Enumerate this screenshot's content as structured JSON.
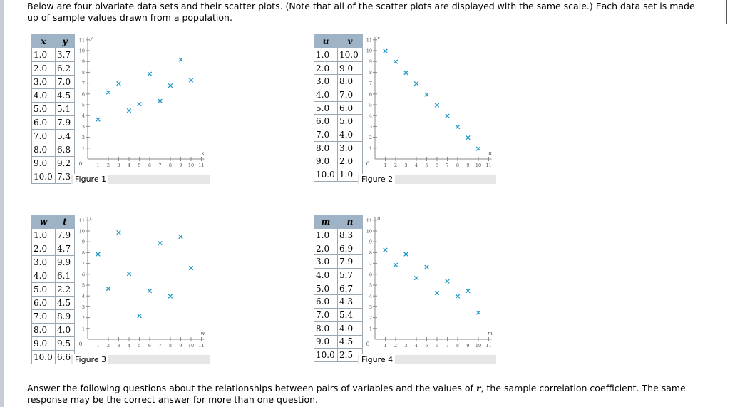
{
  "intro": {
    "lead": "Below are four bivariate data sets and their scatter plots. (Note that all of the scatter plots are displayed with the same scale.) Each data set is made up of sample values drawn from a population."
  },
  "answer": {
    "text": "Answer the following questions about the relationships between pairs of variables and the values of ",
    "var": "r",
    "text2": ", the sample correlation coefficient. The same response may be the correct answer for more than one question."
  },
  "chart_data": [
    {
      "type": "scatter",
      "caption": "Figure 1",
      "xname": "x",
      "yname": "y",
      "x": [
        "1.0",
        "2.0",
        "3.0",
        "4.0",
        "5.0",
        "6.0",
        "7.0",
        "8.0",
        "9.0",
        "10.0"
      ],
      "y": [
        "3.7",
        "6.2",
        "7.0",
        "4.5",
        "5.1",
        "7.9",
        "5.4",
        "6.8",
        "9.2",
        "7.3"
      ],
      "xlabel": "x",
      "ylabel": "y",
      "xlim": [
        0,
        11
      ],
      "ylim": [
        0,
        11
      ],
      "xticks": [
        "1",
        "2",
        "3",
        "4",
        "5",
        "6",
        "7",
        "8",
        "9",
        "10",
        "11"
      ],
      "yticks": [
        "1",
        "2",
        "3",
        "4",
        "5",
        "6",
        "7",
        "8",
        "9",
        "10",
        "11"
      ],
      "origin": "0"
    },
    {
      "type": "scatter",
      "caption": "Figure 2",
      "xname": "u",
      "yname": "v",
      "x": [
        "1.0",
        "2.0",
        "3.0",
        "4.0",
        "5.0",
        "6.0",
        "7.0",
        "8.0",
        "9.0",
        "10.0"
      ],
      "y": [
        "10.0",
        "9.0",
        "8.0",
        "7.0",
        "6.0",
        "5.0",
        "4.0",
        "3.0",
        "2.0",
        "1.0"
      ],
      "xlabel": "u",
      "ylabel": "v",
      "xlim": [
        0,
        11
      ],
      "ylim": [
        0,
        11
      ],
      "xticks": [
        "1",
        "2",
        "3",
        "4",
        "5",
        "6",
        "7",
        "8",
        "9",
        "10",
        "11"
      ],
      "yticks": [
        "1",
        "2",
        "3",
        "4",
        "5",
        "6",
        "7",
        "8",
        "9",
        "10",
        "11"
      ],
      "origin": "0"
    },
    {
      "type": "scatter",
      "caption": "Figure 3",
      "xname": "w",
      "yname": "t",
      "x": [
        "1.0",
        "2.0",
        "3.0",
        "4.0",
        "5.0",
        "6.0",
        "7.0",
        "8.0",
        "9.0",
        "10.0"
      ],
      "y": [
        "7.9",
        "4.7",
        "9.9",
        "6.1",
        "2.2",
        "4.5",
        "8.9",
        "4.0",
        "9.5",
        "6.6"
      ],
      "xlabel": "w",
      "ylabel": "t",
      "xlim": [
        0,
        11
      ],
      "ylim": [
        0,
        11
      ],
      "xticks": [
        "1",
        "2",
        "3",
        "4",
        "5",
        "6",
        "7",
        "8",
        "9",
        "10",
        "11"
      ],
      "yticks": [
        "1",
        "2",
        "3",
        "4",
        "5",
        "6",
        "7",
        "8",
        "9",
        "10",
        "11"
      ],
      "origin": "0"
    },
    {
      "type": "scatter",
      "caption": "Figure 4",
      "xname": "m",
      "yname": "n",
      "x": [
        "1.0",
        "2.0",
        "3.0",
        "4.0",
        "5.0",
        "6.0",
        "7.0",
        "8.0",
        "9.0",
        "10.0"
      ],
      "y": [
        "8.3",
        "6.9",
        "7.9",
        "5.7",
        "6.7",
        "4.3",
        "5.4",
        "4.0",
        "4.5",
        "2.5"
      ],
      "xlabel": "m",
      "ylabel": "n",
      "xlim": [
        0,
        11
      ],
      "ylim": [
        0,
        11
      ],
      "xticks": [
        "1",
        "2",
        "3",
        "4",
        "5",
        "6",
        "7",
        "8",
        "9",
        "10",
        "11"
      ],
      "yticks": [
        "1",
        "2",
        "3",
        "4",
        "5",
        "6",
        "7",
        "8",
        "9",
        "10",
        "11"
      ],
      "origin": "0"
    }
  ],
  "colors": {
    "marker": "#1d97c4",
    "header": "#9fb3c6",
    "axis": "#555555"
  }
}
